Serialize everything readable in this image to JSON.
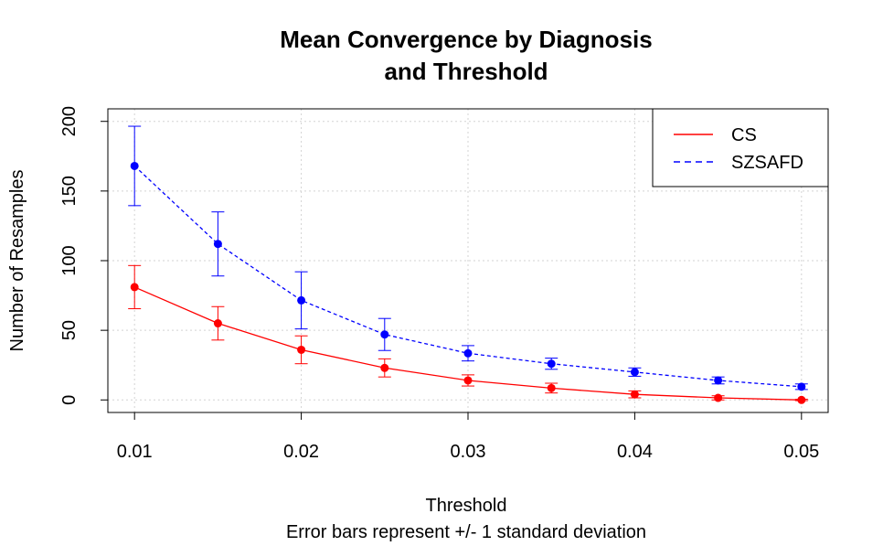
{
  "chart_data": {
    "type": "line",
    "title": [
      "Mean Convergence by Diagnosis",
      "and Threshold"
    ],
    "xlabel": "Threshold",
    "sublabel": "Error bars represent +/- 1 standard deviation",
    "ylabel": "Number of Resamples",
    "xlim": [
      0.0084,
      0.0516
    ],
    "ylim": [
      -9,
      209
    ],
    "x_ticks": [
      0.01,
      0.02,
      0.03,
      0.04,
      0.05
    ],
    "x_tick_labels": [
      "0.01",
      "0.02",
      "0.03",
      "0.04",
      "0.05"
    ],
    "y_ticks": [
      0,
      50,
      100,
      150,
      200
    ],
    "y_tick_labels": [
      "0",
      "50",
      "100",
      "150",
      "200"
    ],
    "grid": true,
    "legend_position": "top-right",
    "x": [
      0.01,
      0.015,
      0.02,
      0.025,
      0.03,
      0.035,
      0.04,
      0.045,
      0.05
    ],
    "series": [
      {
        "name": "CS",
        "color": "#ff0000",
        "line_style": "solid",
        "values": [
          81,
          55,
          36,
          23,
          14,
          8.5,
          4,
          1.5,
          0
        ],
        "error": [
          15.5,
          12,
          10,
          6.5,
          4,
          3.5,
          2.5,
          1.5,
          0.5
        ]
      },
      {
        "name": "SZSAFD",
        "color": "#0000ff",
        "line_style": "dashed",
        "values": [
          168,
          112,
          71.5,
          47,
          33.5,
          26,
          20,
          14,
          9.5
        ],
        "error": [
          28.5,
          23,
          20.5,
          11.5,
          5.5,
          4,
          3,
          2.5,
          2
        ]
      }
    ]
  }
}
